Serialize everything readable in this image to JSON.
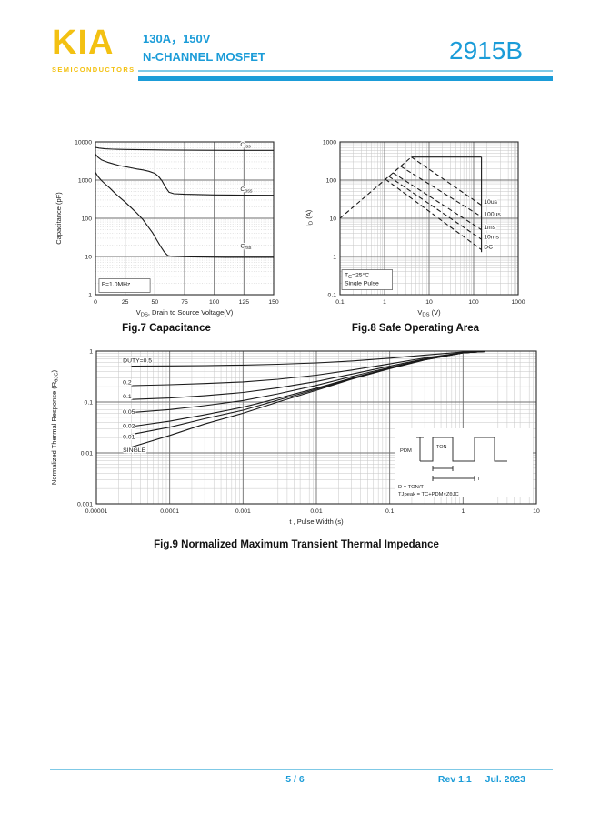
{
  "header": {
    "brand": "KIA",
    "brand_sub": "SEMICONDUCTORS",
    "spec_line1": "130A，150V",
    "spec_line2": "N-CHANNEL MOSFET",
    "part_number": "2915B"
  },
  "colors": {
    "accent": "#1b9cd8",
    "accent_light": "#7fc9e6",
    "brand_yellow": "#f3c112",
    "chart_ink": "#1a1a1a"
  },
  "figures": {
    "fig7": {
      "caption": "Fig.7 Capacitance"
    },
    "fig8": {
      "caption": "Fig.8 Safe Operating Area"
    },
    "fig9": {
      "caption": "Fig.9 Normalized Maximum Transient Thermal Impedance"
    }
  },
  "footer": {
    "page": "5 / 6",
    "rev": "Rev 1.1",
    "date": "Jul. 2023"
  },
  "chart_data": [
    {
      "id": "fig7",
      "type": "line",
      "title": "Fig.7 Capacitance",
      "x": {
        "scale": "linear",
        "min": 0,
        "max": 150,
        "ticks": [
          0,
          25,
          50,
          75,
          100,
          125,
          150
        ],
        "tick_labels": [
          "0",
          "25",
          "50",
          "75",
          "100",
          "125",
          "150"
        ],
        "label": {
          "pre": "V",
          "sub": "DS",
          "post": ", Drain to Source Voltage(V)"
        }
      },
      "y": {
        "scale": "log",
        "min": 1,
        "max": 10000,
        "ticks": [
          1,
          10,
          100,
          1000,
          10000
        ],
        "tick_labels": [
          "1",
          "10",
          "100",
          "1000",
          "10000"
        ],
        "minor_dash": true,
        "label": "Capacitance (pF)"
      },
      "series": [
        {
          "name": "Ciss",
          "dash": null,
          "points": [
            [
              0,
              7200
            ],
            [
              3,
              6900
            ],
            [
              8,
              6600
            ],
            [
              15,
              6450
            ],
            [
              25,
              6350
            ],
            [
              40,
              6250
            ],
            [
              60,
              6150
            ],
            [
              90,
              6050
            ],
            [
              120,
              6000
            ],
            [
              150,
              6000
            ]
          ]
        },
        {
          "name": "Coss",
          "dash": null,
          "points": [
            [
              0,
              4800
            ],
            [
              2,
              4000
            ],
            [
              5,
              3400
            ],
            [
              10,
              2950
            ],
            [
              15,
              2650
            ],
            [
              20,
              2400
            ],
            [
              25,
              2250
            ],
            [
              30,
              2100
            ],
            [
              35,
              1950
            ],
            [
              40,
              1850
            ],
            [
              45,
              1700
            ],
            [
              50,
              1500
            ],
            [
              53,
              1250
            ],
            [
              56,
              950
            ],
            [
              59,
              650
            ],
            [
              62,
              480
            ],
            [
              66,
              440
            ],
            [
              75,
              425
            ],
            [
              100,
              410
            ],
            [
              125,
              405
            ],
            [
              150,
              400
            ]
          ]
        },
        {
          "name": "Crss",
          "dash": null,
          "points": [
            [
              0,
              1600
            ],
            [
              2,
              1250
            ],
            [
              5,
              980
            ],
            [
              8,
              800
            ],
            [
              12,
              620
            ],
            [
              16,
              470
            ],
            [
              20,
              360
            ],
            [
              25,
              265
            ],
            [
              30,
              190
            ],
            [
              35,
              135
            ],
            [
              40,
              92
            ],
            [
              44,
              62
            ],
            [
              48,
              42
            ],
            [
              52,
              26
            ],
            [
              55,
              18
            ],
            [
              58,
              13
            ],
            [
              61,
              10.5
            ],
            [
              65,
              10
            ],
            [
              80,
              9.8
            ],
            [
              110,
              9.5
            ],
            [
              150,
              9.5
            ]
          ]
        }
      ],
      "curve_labels": [
        {
          "x": 122,
          "y": 7600,
          "pre": "C",
          "sub": "iss"
        },
        {
          "x": 122,
          "y": 520,
          "pre": "C",
          "sub": "oss"
        },
        {
          "x": 122,
          "y": 17,
          "pre": "C",
          "sub": "rss"
        }
      ],
      "annotation": {
        "x1": 3,
        "x2": 46,
        "y1": 1.15,
        "y2": 2.6,
        "lines": [
          "F=1.0MHz"
        ]
      }
    },
    {
      "id": "fig8",
      "type": "line",
      "title": "Fig.8 Safe Operating Area",
      "x": {
        "scale": "log",
        "min": 0.1,
        "max": 1000,
        "ticks": [
          0.1,
          1,
          10,
          100,
          1000
        ],
        "tick_labels": [
          "0.1",
          "1",
          "10",
          "100",
          "1000"
        ],
        "label": {
          "pre": "V",
          "sub": "DS",
          "post": " (V)"
        }
      },
      "y": {
        "scale": "log",
        "min": 0.1,
        "max": 1000,
        "ticks": [
          0.1,
          1,
          10,
          100,
          1000
        ],
        "tick_labels": [
          "0.1",
          "1",
          "10",
          "100",
          "1000"
        ],
        "label": {
          "pre": "I",
          "sub": "D",
          "post": " (A)"
        }
      },
      "series": [
        {
          "name": "rds-on-limit",
          "dash": "5,3",
          "points": [
            [
              0.1,
              10
            ],
            [
              4,
              400
            ]
          ]
        },
        {
          "name": "peak-current-limit",
          "dash": null,
          "points": [
            [
              4,
              400
            ],
            [
              150,
              400
            ]
          ]
        },
        {
          "name": "voltage-limit",
          "dash": null,
          "points": [
            [
              150,
              400
            ],
            [
              150,
              1.3
            ]
          ]
        },
        {
          "name": "10us",
          "dash": "5,3",
          "points": [
            [
              4,
              400
            ],
            [
              150,
              22
            ]
          ]
        },
        {
          "name": "100us",
          "dash": "5,3",
          "points": [
            [
              2.3,
              230
            ],
            [
              150,
              11
            ]
          ]
        },
        {
          "name": "1ms",
          "dash": "5,3",
          "points": [
            [
              1.55,
              155
            ],
            [
              150,
              5
            ]
          ]
        },
        {
          "name": "10ms",
          "dash": "5,3",
          "points": [
            [
              1.25,
              125
            ],
            [
              150,
              2.8
            ]
          ]
        },
        {
          "name": "DC",
          "dash": "5,3",
          "points": [
            [
              1.05,
              105
            ],
            [
              150,
              1.5
            ]
          ]
        }
      ],
      "curve_labels": [
        {
          "x": 170,
          "y": 24,
          "text": "10us"
        },
        {
          "x": 170,
          "y": 11.5,
          "text": "100us"
        },
        {
          "x": 170,
          "y": 5.2,
          "text": "1ms"
        },
        {
          "x": 170,
          "y": 2.9,
          "text": "10ms"
        },
        {
          "x": 170,
          "y": 1.6,
          "text": "DC"
        }
      ],
      "annotation": {
        "x1": 0.11,
        "x2": 1.5,
        "y1": 0.135,
        "y2": 0.45,
        "lines": [
          {
            "pre": "T",
            "sub": "C",
            "post": "=25°C"
          },
          "Single Pulse"
        ]
      }
    },
    {
      "id": "fig9",
      "type": "line",
      "title": "Fig.9 Normalized Maximum Transient Thermal Impedance",
      "x": {
        "scale": "log",
        "min": 1e-05,
        "max": 10,
        "ticks": [
          1e-05,
          0.0001,
          0.001,
          0.01,
          0.1,
          1,
          10
        ],
        "tick_labels": [
          "0.00001",
          "0.0001",
          "0.001",
          "0.01",
          "0.1",
          "1",
          "10"
        ],
        "label": "t , Pulse Width (s)"
      },
      "y": {
        "scale": "log",
        "min": 0.001,
        "max": 1,
        "ticks": [
          0.001,
          0.01,
          0.1,
          1
        ],
        "tick_labels": [
          "0.001",
          "0.01",
          "0.1",
          "1"
        ],
        "label": {
          "pre": "Normalized Thermal Response (R",
          "sub": "θJC",
          "post": ")"
        }
      },
      "series": [
        {
          "name": "duty-0.5",
          "dash": null,
          "points": [
            [
              3e-05,
              0.507
            ],
            [
              0.0001,
              0.511
            ],
            [
              0.0003,
              0.519
            ],
            [
              0.001,
              0.53
            ],
            [
              0.003,
              0.55
            ],
            [
              0.01,
              0.585
            ],
            [
              0.03,
              0.64
            ],
            [
              0.1,
              0.725
            ],
            [
              0.3,
              0.835
            ],
            [
              1,
              0.96
            ],
            [
              2,
              0.99
            ]
          ]
        },
        {
          "name": "duty-0.2",
          "dash": null,
          "points": [
            [
              3e-05,
              0.21
            ],
            [
              0.0001,
              0.218
            ],
            [
              0.0003,
              0.23
            ],
            [
              0.001,
              0.248
            ],
            [
              0.003,
              0.28
            ],
            [
              0.01,
              0.336
            ],
            [
              0.03,
              0.424
            ],
            [
              0.1,
              0.56
            ],
            [
              0.3,
              0.736
            ],
            [
              1,
              0.936
            ],
            [
              2,
              0.984
            ]
          ]
        },
        {
          "name": "duty-0.1",
          "dash": null,
          "points": [
            [
              3e-05,
              0.112
            ],
            [
              0.0001,
              0.12
            ],
            [
              0.0003,
              0.133
            ],
            [
              0.001,
              0.154
            ],
            [
              0.003,
              0.19
            ],
            [
              0.01,
              0.253
            ],
            [
              0.03,
              0.352
            ],
            [
              0.1,
              0.505
            ],
            [
              0.3,
              0.703
            ],
            [
              1,
              0.928
            ],
            [
              2,
              0.982
            ]
          ]
        },
        {
          "name": "duty-0.05",
          "dash": null,
          "points": [
            [
              3e-05,
              0.062
            ],
            [
              0.0001,
              0.071
            ],
            [
              0.0003,
              0.085
            ],
            [
              0.001,
              0.107
            ],
            [
              0.003,
              0.145
            ],
            [
              0.01,
              0.212
            ],
            [
              0.03,
              0.316
            ],
            [
              0.1,
              0.478
            ],
            [
              0.3,
              0.687
            ],
            [
              1,
              0.924
            ],
            [
              2,
              0.981
            ]
          ]
        },
        {
          "name": "duty-0.02",
          "dash": null,
          "points": [
            [
              3e-05,
              0.033
            ],
            [
              0.0001,
              0.042
            ],
            [
              0.0003,
              0.056
            ],
            [
              0.001,
              0.079
            ],
            [
              0.003,
              0.118
            ],
            [
              0.01,
              0.187
            ],
            [
              0.03,
              0.294
            ],
            [
              0.1,
              0.461
            ],
            [
              0.3,
              0.677
            ],
            [
              1,
              0.922
            ],
            [
              2,
              0.98
            ]
          ]
        },
        {
          "name": "duty-0.01",
          "dash": null,
          "points": [
            [
              3e-05,
              0.023
            ],
            [
              0.0001,
              0.032
            ],
            [
              0.0003,
              0.047
            ],
            [
              0.001,
              0.069
            ],
            [
              0.003,
              0.109
            ],
            [
              0.01,
              0.178
            ],
            [
              0.03,
              0.287
            ],
            [
              0.1,
              0.456
            ],
            [
              0.3,
              0.673
            ],
            [
              1,
              0.921
            ],
            [
              2,
              0.98
            ]
          ]
        },
        {
          "name": "single-pulse",
          "dash": null,
          "points": [
            [
              3e-05,
              0.013
            ],
            [
              0.0001,
              0.022
            ],
            [
              0.0003,
              0.037
            ],
            [
              0.001,
              0.06
            ],
            [
              0.003,
              0.1
            ],
            [
              0.01,
              0.17
            ],
            [
              0.03,
              0.28
            ],
            [
              0.1,
              0.45
            ],
            [
              0.3,
              0.67
            ],
            [
              1,
              0.92
            ],
            [
              2,
              0.98
            ]
          ]
        }
      ],
      "curve_labels": [
        {
          "x": 2.3e-05,
          "y": 0.6,
          "text": "DUTY=0.5"
        },
        {
          "x": 2.3e-05,
          "y": 0.225,
          "text": "0.2"
        },
        {
          "x": 2.3e-05,
          "y": 0.118,
          "text": "0.1"
        },
        {
          "x": 2.3e-05,
          "y": 0.058,
          "text": "0.05"
        },
        {
          "x": 2.3e-05,
          "y": 0.031,
          "text": "0.02"
        },
        {
          "x": 2.3e-05,
          "y": 0.019,
          "text": "0.01"
        },
        {
          "x": 2.3e-05,
          "y": 0.0105,
          "text": "SINGLE"
        }
      ],
      "inset": {
        "amplitude_label": "PDM",
        "pulse_width_label": "TON",
        "period_label": "T",
        "formula1": "D = TON/T",
        "formula2": "TJpeak = TC+PDM×ZθJC"
      }
    }
  ]
}
